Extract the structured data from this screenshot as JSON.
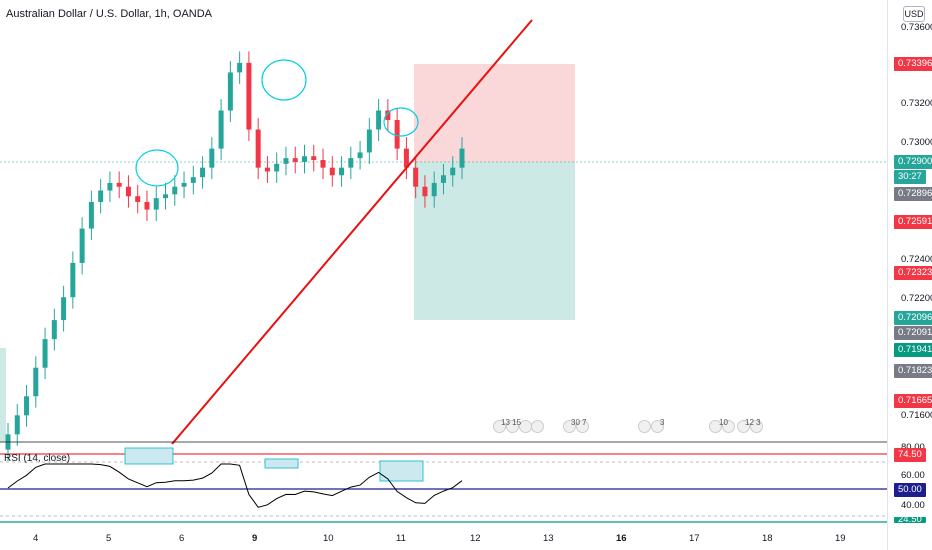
{
  "chart": {
    "title": "Australian Dollar / U.S. Dollar, 1h, OANDA",
    "currency": "USD"
  },
  "price_axis": {
    "ticks": [
      "0.73600",
      "0.73200",
      "0.73000",
      "0.72400",
      "0.72200",
      "0.71600"
    ],
    "badges": [
      {
        "text": "0.73396",
        "color": "#f23645"
      },
      {
        "text": "0.72900",
        "color": "#26a69a"
      },
      {
        "text": "30:27",
        "color": "#26a69a"
      },
      {
        "text": "0.72896",
        "color": "#787b86"
      },
      {
        "text": "0.72591",
        "color": "#f23645"
      },
      {
        "text": "0.72323",
        "color": "#f23645"
      },
      {
        "text": "0.72096",
        "color": "#26a69a"
      },
      {
        "text": "0.72091",
        "color": "#787b86"
      },
      {
        "text": "0.71941",
        "color": "#089981"
      },
      {
        "text": "0.71823",
        "color": "#787b86"
      },
      {
        "text": "0.71665",
        "color": "#f23645"
      }
    ]
  },
  "time_axis": {
    "labels": [
      "4",
      "5",
      "6",
      "9",
      "10",
      "11",
      "12",
      "13",
      "16",
      "17",
      "18",
      "19"
    ]
  },
  "rsi": {
    "label": "RSI (14, close)",
    "ticks": [
      "80.00",
      "60.00",
      "40.00"
    ],
    "badges": [
      {
        "text": "74.50",
        "color": "#f23645"
      },
      {
        "text": "50.00",
        "color": "#1e1e8c"
      },
      {
        "text": "24.50",
        "color": "#089981"
      }
    ]
  },
  "events": [
    {
      "text": "13 15"
    },
    {
      "text": ""
    },
    {
      "text": "30 7"
    },
    {
      "text": "3"
    },
    {
      "text": "10"
    },
    {
      "text": "12 3"
    }
  ],
  "colors": {
    "up": "#26a69a",
    "down": "#f23645",
    "trendline": "#e8110f",
    "loss_zone": "#fad7d9",
    "profit_zone": "#cde9e6",
    "annotation_ellipse": "#00d0e0",
    "rsi_line": "#000000"
  },
  "chart_data": {
    "type": "candlestick",
    "title": "Australian Dollar / U.S. Dollar, 1h, OANDA",
    "x_ticks": [
      "4",
      "5",
      "6",
      "9",
      "10",
      "11",
      "12",
      "13",
      "16",
      "17",
      "18",
      "19"
    ],
    "y_ticks": [
      0.736,
      0.732,
      0.73,
      0.724,
      0.722,
      0.716
    ],
    "ylim": [
      0.7136,
      0.7368
    ],
    "trendline": {
      "from": [
        0.7136,
        "5.9"
      ],
      "to": [
        0.7366,
        "12.9"
      ]
    },
    "position": {
      "entry": 0.729,
      "stop": 0.73396,
      "target": 0.72096
    },
    "close_series": [
      0.714,
      0.715,
      0.716,
      0.7175,
      0.719,
      0.72,
      0.7212,
      0.723,
      0.7248,
      0.7262,
      0.7268,
      0.7272,
      0.727,
      0.7265,
      0.7262,
      0.7258,
      0.7264,
      0.7266,
      0.727,
      0.7272,
      0.7275,
      0.728,
      0.729,
      0.731,
      0.733,
      0.7335,
      0.73,
      0.728,
      0.7278,
      0.7282,
      0.7285,
      0.7283,
      0.7286,
      0.7284,
      0.728,
      0.7276,
      0.728,
      0.7285,
      0.7288,
      0.73,
      0.731,
      0.7305,
      0.729,
      0.728,
      0.727,
      0.7265,
      0.7272,
      0.7276,
      0.728,
      0.729
    ]
  }
}
